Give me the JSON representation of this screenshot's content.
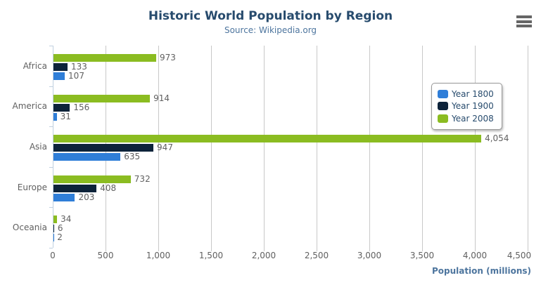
{
  "header": {
    "title": "Historic World Population by Region",
    "subtitle": "Source: Wikipedia.org"
  },
  "export_menu": {
    "icon": "hamburger-icon",
    "color": "#666666"
  },
  "chart_data": {
    "type": "bar",
    "orientation": "horizontal",
    "title": "Historic World Population by Region",
    "subtitle": "Source: Wikipedia.org",
    "categories": [
      "Africa",
      "America",
      "Asia",
      "Europe",
      "Oceania"
    ],
    "series": [
      {
        "name": "Year 1800",
        "color": "#2f7ed8",
        "values": [
          107,
          31,
          635,
          203,
          2
        ]
      },
      {
        "name": "Year 1900",
        "color": "#0d233a",
        "values": [
          133,
          156,
          947,
          408,
          6
        ]
      },
      {
        "name": "Year 2008",
        "color": "#8bbc21",
        "values": [
          973,
          914,
          4054,
          732,
          34
        ]
      }
    ],
    "series_display_order_top_to_bottom": [
      "Year 2008",
      "Year 1900",
      "Year 1800"
    ],
    "data_labels_visible": true,
    "xlabel": "Population (millions)",
    "xlim": [
      0,
      4500
    ],
    "x_tick_interval": 500,
    "x_tick_labels": [
      "0",
      "500",
      "1,000",
      "1,500",
      "2,000",
      "2,500",
      "3,000",
      "3,500",
      "4,000",
      "4,500"
    ],
    "grid": true,
    "legend": {
      "position": "right-top",
      "items": [
        "Year 1800",
        "Year 1900",
        "Year 2008"
      ]
    }
  },
  "colors": {
    "title": "#274b6d",
    "subtitle": "#4d759e",
    "axis_label": "#606060",
    "data_label": "#606060",
    "axis_title": "#4d759e",
    "grid_line": "#c8c8c8",
    "axis_line": "#c0d0e0",
    "legend_border": "#999999"
  }
}
